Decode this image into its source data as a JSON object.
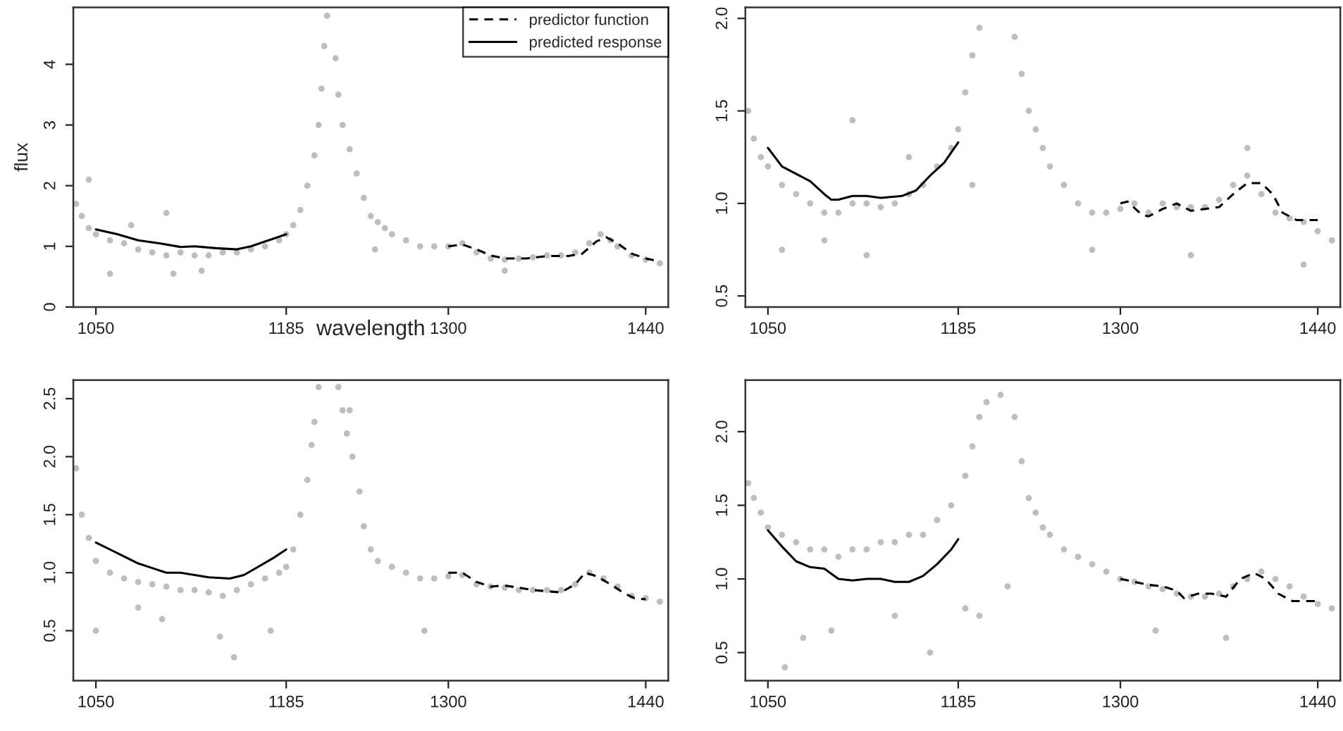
{
  "chart_data": [
    {
      "type": "scatter",
      "xlabel": "wavelength",
      "ylabel": "flux",
      "legend": "top right",
      "xlim": [
        1034,
        1456
      ],
      "ylim": [
        0,
        4.94
      ],
      "xticks": [
        1050,
        1185,
        1300,
        1440
      ],
      "yticks": [
        0,
        1,
        2,
        3,
        4
      ],
      "series": [
        {
          "marker": "circle",
          "color": "#bebebe",
          "x": [
            1036,
            1040,
            1045,
            1050,
            1060,
            1070,
            1080,
            1090,
            1100,
            1110,
            1120,
            1130,
            1140,
            1150,
            1160,
            1170,
            1180,
            1185,
            1190,
            1195,
            1200,
            1205,
            1208,
            1210,
            1212,
            1214,
            1220,
            1222,
            1225,
            1230,
            1235,
            1240,
            1245,
            1250,
            1255,
            1260,
            1270,
            1280,
            1290,
            1300,
            1310,
            1320,
            1330,
            1340,
            1350,
            1360,
            1370,
            1380,
            1390,
            1400,
            1408,
            1415,
            1420,
            1430,
            1440,
            1450,
            1045,
            1060,
            1075,
            1100,
            1105,
            1125,
            1248,
            1340
          ],
          "values": [
            1.7,
            1.5,
            1.3,
            1.2,
            1.1,
            1.05,
            0.95,
            0.9,
            0.85,
            0.9,
            0.85,
            0.85,
            0.9,
            0.9,
            0.95,
            1.0,
            1.1,
            1.2,
            1.35,
            1.6,
            2.0,
            2.5,
            3.0,
            3.6,
            4.3,
            4.8,
            4.1,
            3.5,
            3.0,
            2.6,
            2.2,
            1.8,
            1.5,
            1.4,
            1.3,
            1.2,
            1.1,
            1.0,
            1.0,
            1.0,
            1.05,
            0.9,
            0.8,
            0.78,
            0.8,
            0.82,
            0.85,
            0.85,
            0.9,
            1.05,
            1.2,
            1.1,
            1.0,
            0.85,
            0.78,
            0.72,
            2.1,
            0.55,
            1.35,
            1.55,
            0.55,
            0.6,
            0.95,
            0.6
          ]
        },
        {
          "type": "line",
          "name": "predictor function",
          "line_style": "dashed",
          "color": "#000000",
          "x": [
            1300,
            1310,
            1320,
            1330,
            1340,
            1355,
            1370,
            1385,
            1395,
            1405,
            1412,
            1420,
            1430,
            1440,
            1450
          ],
          "values": [
            1.0,
            1.03,
            0.95,
            0.85,
            0.8,
            0.8,
            0.84,
            0.84,
            0.88,
            1.08,
            1.15,
            1.05,
            0.88,
            0.8,
            0.75
          ]
        },
        {
          "type": "line",
          "name": "predicted response",
          "line_style": "solid",
          "color": "#000000",
          "x": [
            1050,
            1065,
            1080,
            1095,
            1110,
            1120,
            1135,
            1150,
            1160,
            1175,
            1185
          ],
          "values": [
            1.28,
            1.2,
            1.1,
            1.05,
            0.99,
            1.0,
            0.97,
            0.95,
            1.0,
            1.12,
            1.2
          ]
        }
      ]
    },
    {
      "type": "scatter",
      "xlim": [
        1034,
        1456
      ],
      "ylim": [
        0.44,
        2.06
      ],
      "xticks": [
        1050,
        1185,
        1300,
        1440
      ],
      "yticks": [
        {
          "value": 0.5,
          "label": "0.5"
        },
        {
          "value": 1,
          "label": "1.0"
        },
        {
          "value": 1.5,
          "label": "1.5"
        },
        {
          "value": 2,
          "label": "2.0"
        }
      ],
      "series": [
        {
          "marker": "circle",
          "color": "#bebebe",
          "x": [
            1036,
            1040,
            1045,
            1050,
            1060,
            1070,
            1080,
            1090,
            1100,
            1110,
            1120,
            1130,
            1140,
            1150,
            1160,
            1170,
            1180,
            1185,
            1190,
            1195,
            1200,
            1225,
            1230,
            1235,
            1240,
            1245,
            1250,
            1260,
            1270,
            1280,
            1290,
            1300,
            1310,
            1320,
            1330,
            1340,
            1350,
            1360,
            1370,
            1380,
            1390,
            1400,
            1410,
            1420,
            1430,
            1440,
            1450,
            1060,
            1090,
            1110,
            1120,
            1150,
            1195,
            1280,
            1350,
            1430,
            1390
          ],
          "values": [
            1.5,
            1.35,
            1.25,
            1.2,
            1.1,
            1.05,
            1.0,
            0.95,
            0.95,
            1.0,
            1.0,
            0.98,
            1.0,
            1.05,
            1.1,
            1.2,
            1.3,
            1.4,
            1.6,
            1.8,
            1.95,
            1.9,
            1.7,
            1.5,
            1.4,
            1.3,
            1.2,
            1.1,
            1.0,
            0.95,
            0.95,
            0.97,
            1.0,
            0.95,
            1.0,
            0.98,
            0.98,
            0.98,
            1.02,
            1.1,
            1.15,
            1.05,
            0.95,
            0.92,
            0.9,
            0.85,
            0.8,
            0.75,
            0.8,
            1.45,
            0.72,
            1.25,
            1.1,
            0.75,
            0.72,
            0.67,
            1.3
          ]
        },
        {
          "type": "line",
          "line_style": "dashed",
          "color": "#000000",
          "x": [
            1300,
            1305,
            1315,
            1320,
            1330,
            1340,
            1350,
            1360,
            1370,
            1380,
            1390,
            1400,
            1408,
            1415,
            1425,
            1440
          ],
          "values": [
            1.0,
            1.01,
            0.94,
            0.93,
            0.97,
            1.0,
            0.96,
            0.97,
            0.98,
            1.05,
            1.11,
            1.11,
            1.05,
            0.95,
            0.91,
            0.91
          ]
        },
        {
          "type": "line",
          "line_style": "solid",
          "color": "#000000",
          "x": [
            1050,
            1060,
            1070,
            1080,
            1090,
            1095,
            1100,
            1110,
            1120,
            1130,
            1145,
            1155,
            1165,
            1175,
            1185
          ],
          "values": [
            1.3,
            1.2,
            1.16,
            1.12,
            1.05,
            1.02,
            1.02,
            1.04,
            1.04,
            1.03,
            1.04,
            1.07,
            1.15,
            1.22,
            1.33
          ]
        }
      ]
    },
    {
      "type": "scatter",
      "xlim": [
        1034,
        1456
      ],
      "ylim": [
        0.07,
        2.66
      ],
      "xticks": [
        1050,
        1185,
        1300,
        1440
      ],
      "yticks": [
        {
          "value": 0.5,
          "label": "0.5"
        },
        {
          "value": 1,
          "label": "1.0"
        },
        {
          "value": 1.5,
          "label": "1.5"
        },
        {
          "value": 2,
          "label": "2.0"
        },
        {
          "value": 2.5,
          "label": "2.5"
        }
      ],
      "series": [
        {
          "marker": "circle",
          "color": "#bebebe",
          "x": [
            1036,
            1040,
            1045,
            1050,
            1060,
            1070,
            1080,
            1090,
            1100,
            1110,
            1120,
            1130,
            1140,
            1150,
            1160,
            1170,
            1180,
            1185,
            1190,
            1195,
            1200,
            1203,
            1205,
            1208,
            1222,
            1225,
            1228,
            1232,
            1237,
            1240,
            1245,
            1250,
            1260,
            1270,
            1280,
            1290,
            1300,
            1310,
            1320,
            1330,
            1340,
            1350,
            1360,
            1370,
            1380,
            1390,
            1400,
            1410,
            1420,
            1430,
            1440,
            1450,
            1050,
            1080,
            1097,
            1138,
            1148,
            1174,
            1283,
            1230
          ],
          "values": [
            1.9,
            1.5,
            1.3,
            1.1,
            1.0,
            0.95,
            0.92,
            0.9,
            0.88,
            0.85,
            0.85,
            0.83,
            0.8,
            0.85,
            0.9,
            0.95,
            1.0,
            1.05,
            1.2,
            1.5,
            1.8,
            2.1,
            2.3,
            2.6,
            2.6,
            2.4,
            2.2,
            2.0,
            1.7,
            1.4,
            1.2,
            1.1,
            1.05,
            1.0,
            0.95,
            0.95,
            0.97,
            0.98,
            0.9,
            0.88,
            0.87,
            0.85,
            0.85,
            0.85,
            0.85,
            0.9,
            1.0,
            0.95,
            0.88,
            0.8,
            0.78,
            0.75,
            0.5,
            0.7,
            0.6,
            0.45,
            0.27,
            0.5,
            0.5,
            2.4
          ]
        },
        {
          "type": "line",
          "line_style": "dashed",
          "color": "#000000",
          "x": [
            1300,
            1310,
            1320,
            1330,
            1340,
            1350,
            1360,
            1370,
            1380,
            1390,
            1397,
            1405,
            1415,
            1425,
            1432,
            1440
          ],
          "values": [
            1.0,
            1.0,
            0.92,
            0.88,
            0.89,
            0.87,
            0.85,
            0.84,
            0.83,
            0.9,
            1.0,
            0.97,
            0.9,
            0.82,
            0.78,
            0.77
          ]
        },
        {
          "type": "line",
          "line_style": "solid",
          "color": "#000000",
          "x": [
            1050,
            1060,
            1070,
            1080,
            1090,
            1100,
            1110,
            1120,
            1130,
            1145,
            1155,
            1165,
            1175,
            1185
          ],
          "values": [
            1.26,
            1.2,
            1.14,
            1.08,
            1.04,
            1.0,
            1.0,
            0.98,
            0.96,
            0.95,
            0.98,
            1.05,
            1.12,
            1.2
          ]
        }
      ]
    },
    {
      "type": "scatter",
      "xlim": [
        1034,
        1456
      ],
      "ylim": [
        0.31,
        2.35
      ],
      "xticks": [
        1050,
        1185,
        1300,
        1440
      ],
      "yticks": [
        {
          "value": 0.5,
          "label": "0.5"
        },
        {
          "value": 1,
          "label": "1.0"
        },
        {
          "value": 1.5,
          "label": "1.5"
        },
        {
          "value": 2,
          "label": "2.0"
        }
      ],
      "series": [
        {
          "marker": "circle",
          "color": "#bebebe",
          "x": [
            1036,
            1040,
            1045,
            1050,
            1060,
            1070,
            1080,
            1090,
            1100,
            1110,
            1120,
            1130,
            1140,
            1150,
            1160,
            1170,
            1180,
            1190,
            1195,
            1200,
            1205,
            1215,
            1225,
            1230,
            1235,
            1240,
            1245,
            1250,
            1260,
            1270,
            1280,
            1290,
            1300,
            1310,
            1320,
            1330,
            1340,
            1350,
            1360,
            1370,
            1380,
            1390,
            1400,
            1410,
            1420,
            1430,
            1440,
            1450,
            1062,
            1075,
            1095,
            1140,
            1165,
            1190,
            1200,
            1220,
            1325,
            1375
          ],
          "values": [
            1.65,
            1.55,
            1.45,
            1.35,
            1.3,
            1.25,
            1.2,
            1.2,
            1.15,
            1.2,
            1.2,
            1.25,
            1.25,
            1.3,
            1.3,
            1.4,
            1.5,
            1.7,
            1.9,
            2.1,
            2.2,
            2.25,
            2.1,
            1.8,
            1.55,
            1.45,
            1.35,
            1.3,
            1.2,
            1.15,
            1.1,
            1.05,
            1.0,
            0.98,
            0.95,
            0.93,
            0.9,
            0.88,
            0.88,
            0.9,
            0.95,
            1.0,
            1.05,
            1.0,
            0.95,
            0.88,
            0.83,
            0.8,
            0.4,
            0.6,
            0.65,
            0.75,
            0.5,
            0.8,
            0.75,
            0.95,
            0.65,
            0.6
          ]
        },
        {
          "type": "line",
          "line_style": "dashed",
          "color": "#000000",
          "x": [
            1300,
            1310,
            1320,
            1330,
            1340,
            1345,
            1355,
            1365,
            1375,
            1385,
            1395,
            1403,
            1412,
            1422,
            1430,
            1440
          ],
          "values": [
            1.0,
            0.98,
            0.96,
            0.95,
            0.92,
            0.87,
            0.9,
            0.9,
            0.88,
            1.0,
            1.04,
            1.0,
            0.9,
            0.85,
            0.85,
            0.85
          ]
        },
        {
          "type": "line",
          "line_style": "solid",
          "color": "#000000",
          "x": [
            1050,
            1060,
            1070,
            1080,
            1090,
            1100,
            1110,
            1120,
            1130,
            1140,
            1150,
            1160,
            1170,
            1180,
            1185
          ],
          "values": [
            1.33,
            1.22,
            1.12,
            1.08,
            1.07,
            1.0,
            0.99,
            1.0,
            1.0,
            0.98,
            0.98,
            1.02,
            1.1,
            1.2,
            1.27
          ]
        }
      ]
    }
  ]
}
